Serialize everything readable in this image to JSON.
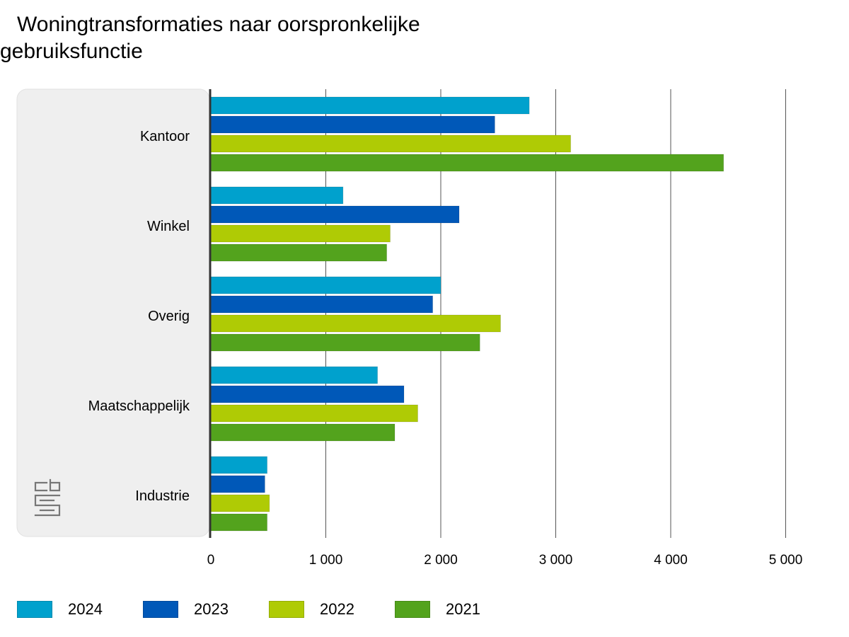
{
  "chart_data": {
    "type": "bar",
    "orientation": "horizontal",
    "title": "Woningtransformaties naar oorspronkelijke gebruiksfunctie",
    "title_lines": [
      "Woningtransformaties naar oorspronkelijke",
      "gebruiksfunctie"
    ],
    "categories": [
      "Kantoor",
      "Winkel",
      "Overig",
      "Maatschappelijk",
      "Industrie"
    ],
    "series": [
      {
        "name": "2024",
        "color": "#00a1cd",
        "values": [
          2770,
          1150,
          2000,
          1450,
          490
        ]
      },
      {
        "name": "2023",
        "color": "#0058b8",
        "values": [
          2470,
          2160,
          1930,
          1680,
          470
        ]
      },
      {
        "name": "2022",
        "color": "#afcb05",
        "values": [
          3130,
          1560,
          2520,
          1800,
          510
        ]
      },
      {
        "name": "2021",
        "color": "#53a31d",
        "values": [
          4460,
          1530,
          2340,
          1600,
          490
        ]
      }
    ],
    "xlim": [
      0,
      5000
    ],
    "x_ticks": [
      0,
      1000,
      2000,
      3000,
      4000,
      5000
    ],
    "x_tick_labels": [
      "0",
      "1 000",
      "2 000",
      "3 000",
      "4 000",
      "5 000"
    ],
    "xlabel": "",
    "ylabel": "",
    "grid": "vertical",
    "legend_position": "bottom",
    "logo": "cbs-logo"
  }
}
